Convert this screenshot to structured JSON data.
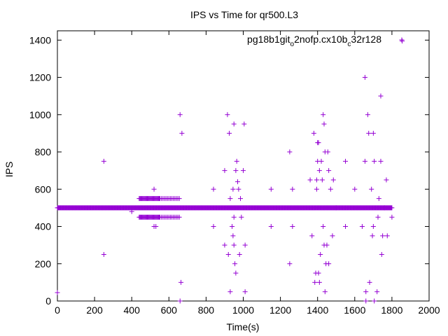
{
  "chart_data": {
    "type": "scatter",
    "title": "IPS vs Time for qr500.L3",
    "xlabel": "Time(s)",
    "ylabel": "IPS",
    "xlim": [
      0,
      2000
    ],
    "ylim": [
      0,
      1450
    ],
    "xticks": [
      0,
      200,
      400,
      600,
      800,
      1000,
      1200,
      1400,
      1600,
      1800,
      2000
    ],
    "yticks": [
      0,
      200,
      400,
      600,
      800,
      1000,
      1200,
      1400
    ],
    "grid": false,
    "legend_position": "top-right",
    "marker": "+",
    "color": "#9400d3",
    "series": [
      {
        "legend": {
          "main1": "pg18b1git",
          "sub1": "o",
          "main2": "2nofp.cx10b",
          "sub2": "c",
          "main3": "32r128"
        },
        "baseline": {
          "x_start": 0,
          "x_end": 1800,
          "x_step": 3,
          "y": 500
        },
        "points": [
          [
            0,
            45
          ],
          [
            250,
            750
          ],
          [
            250,
            250
          ],
          [
            400,
            480
          ],
          [
            520,
            600
          ],
          [
            520,
            400
          ],
          [
            530,
            400
          ],
          [
            660,
            1000
          ],
          [
            670,
            900
          ],
          [
            665,
            100
          ],
          [
            660,
            0
          ],
          [
            840,
            600
          ],
          [
            840,
            400
          ],
          [
            900,
            700
          ],
          [
            900,
            300
          ],
          [
            920,
            250
          ],
          [
            915,
            1000
          ],
          [
            925,
            900
          ],
          [
            930,
            550
          ],
          [
            930,
            50
          ],
          [
            940,
            400
          ],
          [
            945,
            350
          ],
          [
            950,
            300
          ],
          [
            955,
            200
          ],
          [
            960,
            150
          ],
          [
            950,
            950
          ],
          [
            960,
            700
          ],
          [
            965,
            750
          ],
          [
            970,
            640
          ],
          [
            975,
            600
          ],
          [
            985,
            550
          ],
          [
            990,
            450
          ],
          [
            1000,
            700
          ],
          [
            1005,
            950
          ],
          [
            1010,
            300
          ],
          [
            1010,
            50
          ],
          [
            980,
            250
          ],
          [
            950,
            450
          ],
          [
            945,
            600
          ],
          [
            1150,
            600
          ],
          [
            1150,
            400
          ],
          [
            1250,
            800
          ],
          [
            1250,
            200
          ],
          [
            1265,
            600
          ],
          [
            1265,
            400
          ],
          [
            1360,
            650
          ],
          [
            1370,
            350
          ],
          [
            1380,
            900
          ],
          [
            1385,
            100
          ],
          [
            1390,
            150
          ],
          [
            1395,
            600
          ],
          [
            1395,
            650
          ],
          [
            1400,
            850
          ],
          [
            1405,
            850
          ],
          [
            1400,
            750
          ],
          [
            1405,
            150
          ],
          [
            1410,
            700
          ],
          [
            1410,
            100
          ],
          [
            1415,
            250
          ],
          [
            1420,
            750
          ],
          [
            1425,
            650
          ],
          [
            1430,
            1000
          ],
          [
            1435,
            950
          ],
          [
            1430,
            400
          ],
          [
            1435,
            300
          ],
          [
            1440,
            50
          ],
          [
            1440,
            800
          ],
          [
            1445,
            200
          ],
          [
            1450,
            300
          ],
          [
            1455,
            800
          ],
          [
            1460,
            700
          ],
          [
            1460,
            200
          ],
          [
            1470,
            600
          ],
          [
            1480,
            350
          ],
          [
            1485,
            650
          ],
          [
            1500,
            500
          ],
          [
            1550,
            750
          ],
          [
            1550,
            400
          ],
          [
            1600,
            600
          ],
          [
            1640,
            400
          ],
          [
            1655,
            1200
          ],
          [
            1655,
            750
          ],
          [
            1660,
            50
          ],
          [
            1660,
            0
          ],
          [
            1670,
            1000
          ],
          [
            1675,
            900
          ],
          [
            1680,
            100
          ],
          [
            1690,
            600
          ],
          [
            1695,
            350
          ],
          [
            1700,
            900
          ],
          [
            1700,
            400
          ],
          [
            1705,
            750
          ],
          [
            1705,
            0
          ],
          [
            1720,
            50
          ],
          [
            1725,
            450
          ],
          [
            1730,
            550
          ],
          [
            1740,
            1100
          ],
          [
            1740,
            750
          ],
          [
            1745,
            250
          ],
          [
            1750,
            350
          ],
          [
            1760,
            500
          ],
          [
            1770,
            650
          ],
          [
            1775,
            350
          ],
          [
            1800,
            450
          ],
          [
            1855,
            1395
          ]
        ]
      }
    ]
  }
}
